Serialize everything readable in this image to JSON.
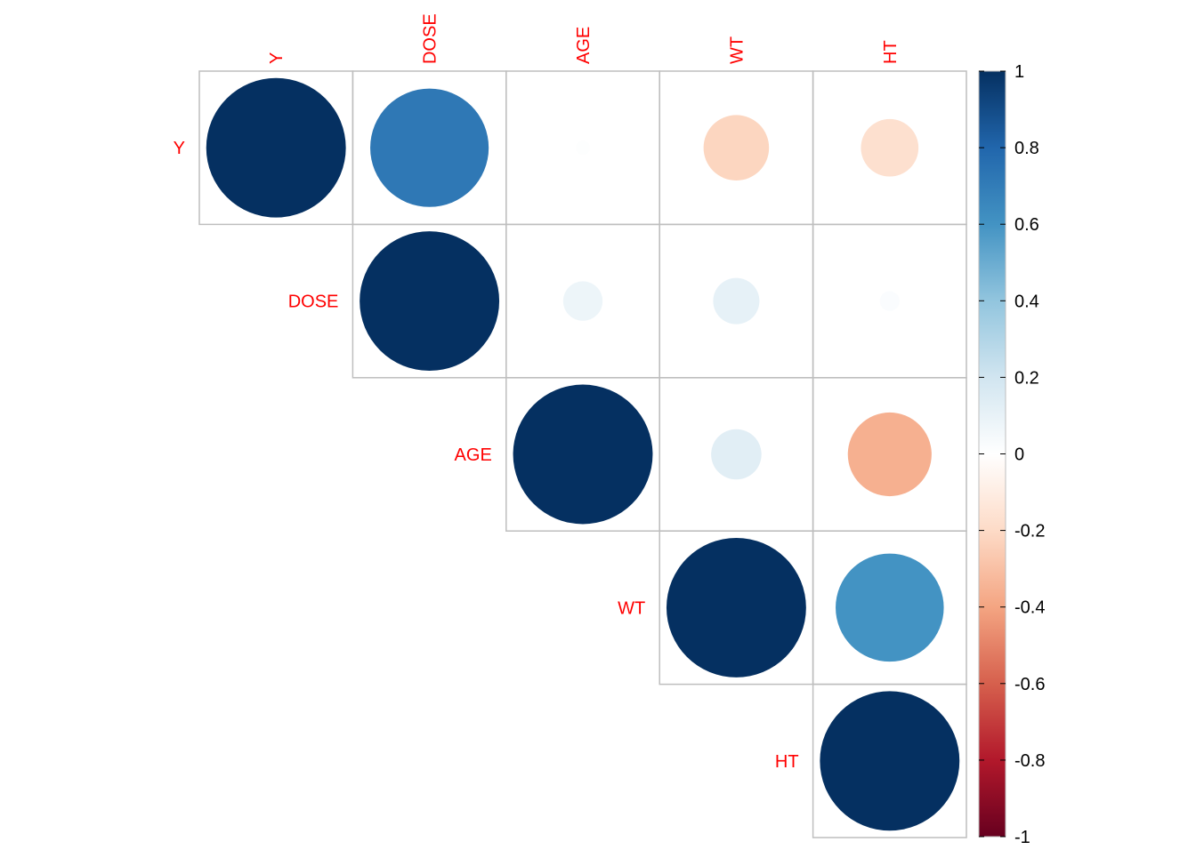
{
  "chart_data": {
    "type": "corrplot",
    "variables": [
      "Y",
      "DOSE",
      "AGE",
      "WT",
      "HT"
    ],
    "matrix": [
      [
        1,
        0.72,
        0.01,
        -0.22,
        -0.17
      ],
      [
        null,
        1,
        0.08,
        0.11,
        0.02
      ],
      [
        null,
        null,
        1,
        0.13,
        -0.36
      ],
      [
        null,
        null,
        null,
        1,
        0.6
      ],
      [
        null,
        null,
        null,
        null,
        1
      ]
    ],
    "clim": [
      -1,
      1
    ],
    "cticks": [
      {
        "value": 1,
        "label": "1"
      },
      0.8,
      0.6,
      0.4,
      0.2,
      0,
      -0.2,
      -0.4,
      -0.6,
      -0.8,
      {
        "value": -1,
        "label": "-1"
      }
    ],
    "colors": [
      "#67001F",
      "#B2182B",
      "#D6604D",
      "#F4A582",
      "#FDDBC7",
      "#FFFFFF",
      "#D1E5F0",
      "#92C5DE",
      "#4393C3",
      "#2166AC",
      "#053061"
    ],
    "label_color": "#FF0000",
    "grid_color": "#BEBEBE"
  }
}
